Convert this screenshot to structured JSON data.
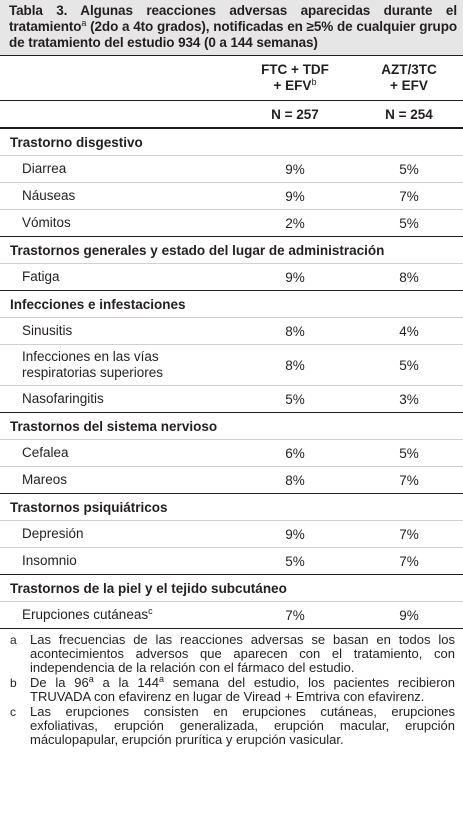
{
  "title": {
    "before": "Tabla 3. Algunas reacciones adversas aparecidas durante el tratamiento",
    "sup": "a",
    "after": " (2do a 4to grados), notificadas en ≥5% de cualquier grupo de tratamiento del estudio 934 (0 a 144 semanas)"
  },
  "columns": [
    {
      "lines": [
        "FTC + TDF",
        "+ EFV"
      ],
      "sup": "b",
      "n": "N = 257"
    },
    {
      "lines": [
        "AZT/3TC",
        "+ EFV"
      ],
      "n": "N = 254"
    }
  ],
  "groups": [
    {
      "name": "Trastorno disgestivo",
      "rows": [
        {
          "label": "Diarrea",
          "values": [
            "9%",
            "5%"
          ]
        },
        {
          "label": "Náuseas",
          "values": [
            "9%",
            "7%"
          ]
        },
        {
          "label": "Vómitos",
          "values": [
            "2%",
            "5%"
          ]
        }
      ]
    },
    {
      "name": "Trastornos generales y estado del lugar de administración",
      "rows": [
        {
          "label": "Fatiga",
          "values": [
            "9%",
            "8%"
          ]
        }
      ]
    },
    {
      "name": "Infecciones e infestaciones",
      "rows": [
        {
          "label": "Sinusitis",
          "values": [
            "8%",
            "4%"
          ]
        },
        {
          "label": "Infecciones en las vías respiratorias superiores",
          "values": [
            "8%",
            "5%"
          ]
        },
        {
          "label": "Nasofaringitis",
          "values": [
            "5%",
            "3%"
          ]
        }
      ]
    },
    {
      "name": "Trastornos del sistema nervioso",
      "rows": [
        {
          "label": "Cefalea",
          "values": [
            "6%",
            "5%"
          ]
        },
        {
          "label": "Mareos",
          "values": [
            "8%",
            "7%"
          ]
        }
      ]
    },
    {
      "name": "Trastornos psiquiátricos",
      "rows": [
        {
          "label": "Depresión",
          "values": [
            "9%",
            "7%"
          ]
        },
        {
          "label": "Insomnio",
          "values": [
            "5%",
            "7%"
          ]
        }
      ]
    },
    {
      "name": "Trastornos de la piel y el tejido subcutáneo",
      "rows": [
        {
          "label": "Erupciones cutáneas",
          "sup": "c",
          "values": [
            "7%",
            "9%"
          ]
        }
      ]
    }
  ],
  "footnotes": [
    {
      "mark": "a",
      "segments": [
        {
          "text": "Las frecuencias de las reacciones adversas se basan en todos los acontecimientos adversos que aparecen con el tratamiento, con independencia de la relación con el fármaco del estudio."
        }
      ]
    },
    {
      "mark": "b",
      "segments": [
        {
          "text": "De la 96"
        },
        {
          "sup": "a"
        },
        {
          "text": " a la 144"
        },
        {
          "sup": "a"
        },
        {
          "text": " semana del estudio, los pacientes recibieron TRUVADA con efavirenz en lugar de Viread + Emtriva con efavirenz."
        }
      ]
    },
    {
      "mark": "c",
      "segments": [
        {
          "text": "Las erupciones consisten en erupciones cutáneas, erupciones exfoliativas, erupción generalizada, erupción macular, erupción máculopapular, erupción prurítica y erupción vasicular."
        }
      ]
    }
  ]
}
